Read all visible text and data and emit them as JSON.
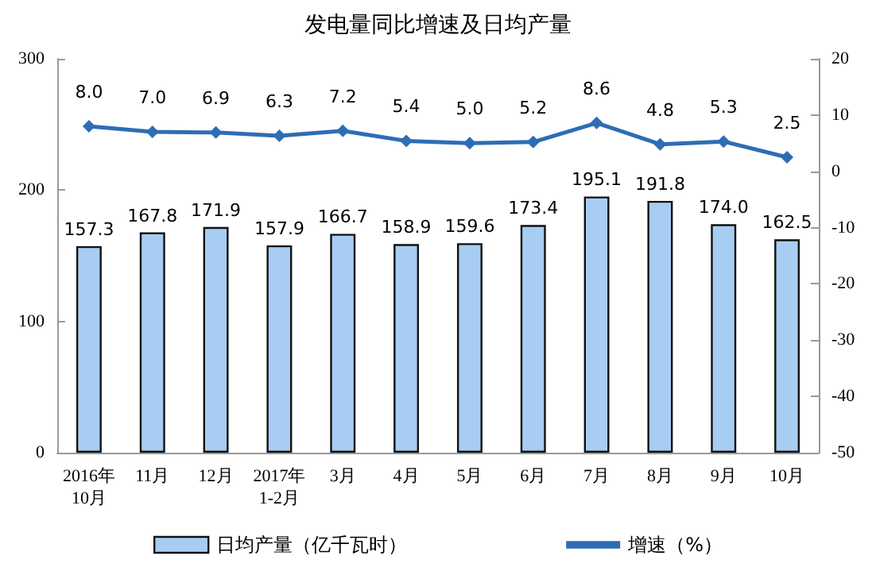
{
  "chart_data": {
    "type": "bar",
    "title": "发电量同比增速及日均产量",
    "categories": [
      "2016年\n10月",
      "11月",
      "12月",
      "2017年\n1-2月",
      "3月",
      "4月",
      "5月",
      "6月",
      "7月",
      "8月",
      "9月",
      "10月"
    ],
    "series": [
      {
        "name": "日均产量（亿千瓦时）",
        "color": "#a8cdf2",
        "values": [
          157.3,
          167.8,
          171.9,
          157.9,
          166.7,
          158.9,
          159.6,
          173.4,
          195.1,
          191.8,
          174.0,
          162.5
        ],
        "value_labels": [
          "157.3",
          "167.8",
          "171.9",
          "157.9",
          "166.7",
          "158.9",
          "159.6",
          "173.4",
          "195.1",
          "191.8",
          "174.0",
          "162.5"
        ]
      },
      {
        "name": "增速（%）",
        "type": "line",
        "axis": "y2",
        "color": "#2e6db4",
        "marker": "diamond",
        "values": [
          8.0,
          7.0,
          6.9,
          6.3,
          7.2,
          5.4,
          5.0,
          5.2,
          8.6,
          4.8,
          5.3,
          2.5
        ],
        "value_labels": [
          "8.0",
          "7.0",
          "6.9",
          "6.3",
          "7.2",
          "5.4",
          "5.0",
          "5.2",
          "8.6",
          "4.8",
          "5.3",
          "2.5"
        ]
      }
    ],
    "ylim": [
      0,
      300
    ],
    "yticks": [
      0,
      100,
      200,
      300
    ],
    "y2lim": [
      -50,
      20
    ],
    "y2ticks": [
      -50,
      -40,
      -30,
      -20,
      -10,
      0,
      10,
      20
    ],
    "grid": false,
    "legend": "bottom"
  }
}
